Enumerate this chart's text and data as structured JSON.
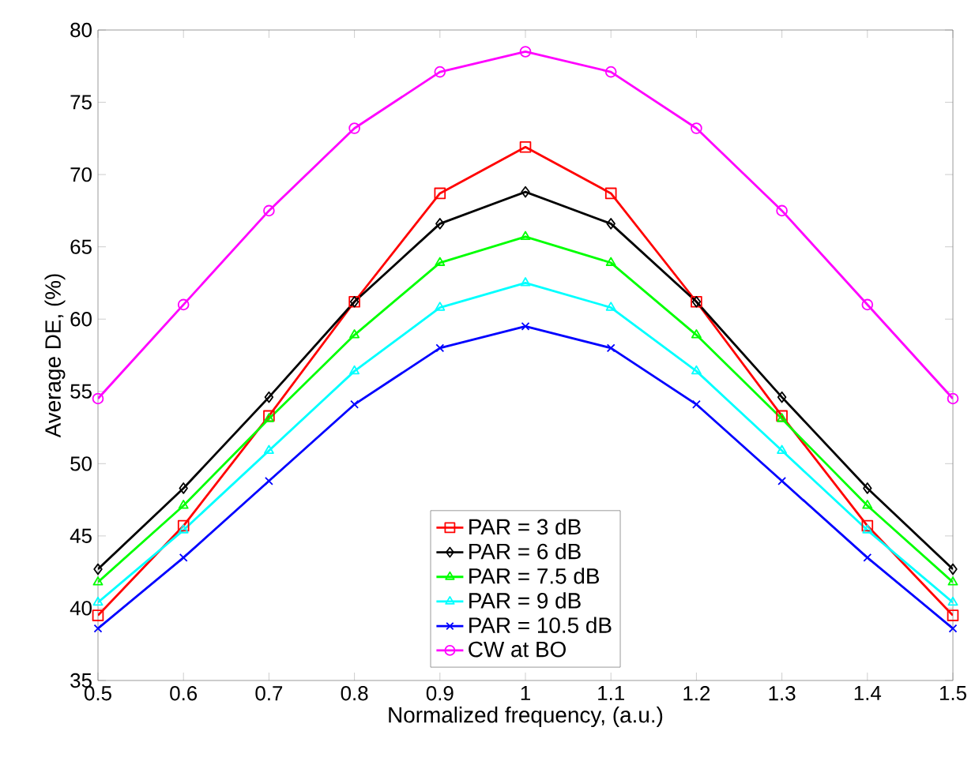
{
  "chart_data": {
    "type": "line",
    "xlabel": "Normalized frequency, (a.u.)",
    "ylabel": "Average DE, (%)",
    "x": [
      0.5,
      0.6,
      0.7,
      0.8,
      0.9,
      1.0,
      1.1,
      1.2,
      1.3,
      1.4,
      1.5
    ],
    "xlim": [
      0.5,
      1.5
    ],
    "xticks": [
      0.5,
      0.6,
      0.7,
      0.8,
      0.9,
      1,
      1.1,
      1.2,
      1.3,
      1.4,
      1.5
    ],
    "ylim": [
      35,
      80
    ],
    "yticks": [
      35,
      40,
      45,
      50,
      55,
      60,
      65,
      70,
      75,
      80
    ],
    "legend": "bottom",
    "grid": false,
    "line_style": "solid",
    "series": [
      {
        "name": "PAR = 3 dB",
        "color": "#ff0000",
        "marker": "square",
        "values": [
          39.5,
          45.7,
          53.3,
          61.2,
          68.7,
          71.9,
          68.7,
          61.2,
          53.3,
          45.7,
          39.5
        ]
      },
      {
        "name": "PAR = 6 dB",
        "color": "#000000",
        "marker": "diamond",
        "values": [
          42.7,
          48.3,
          54.6,
          61.2,
          66.6,
          68.8,
          66.6,
          61.2,
          54.6,
          48.3,
          42.7
        ]
      },
      {
        "name": "PAR = 7.5 dB",
        "color": "#00ff00",
        "marker": "triangle-left",
        "values": [
          41.8,
          47.1,
          53.1,
          58.9,
          63.9,
          65.7,
          63.9,
          58.9,
          53.1,
          47.1,
          41.8
        ]
      },
      {
        "name": "PAR = 9 dB",
        "color": "#00ffff",
        "marker": "triangle-right",
        "values": [
          40.4,
          45.4,
          50.9,
          56.4,
          60.8,
          62.5,
          60.8,
          56.4,
          50.9,
          45.4,
          40.4
        ]
      },
      {
        "name": "PAR = 10.5 dB",
        "color": "#0000ff",
        "marker": "cross",
        "values": [
          38.6,
          43.5,
          48.8,
          54.1,
          58.0,
          59.5,
          58.0,
          54.1,
          48.8,
          43.5,
          38.6
        ]
      },
      {
        "name": "CW at BO",
        "color": "#ff00ff",
        "marker": "circle",
        "values": [
          54.5,
          61.0,
          67.5,
          73.2,
          77.1,
          78.5,
          77.1,
          73.2,
          67.5,
          61.0,
          54.5
        ]
      }
    ]
  }
}
